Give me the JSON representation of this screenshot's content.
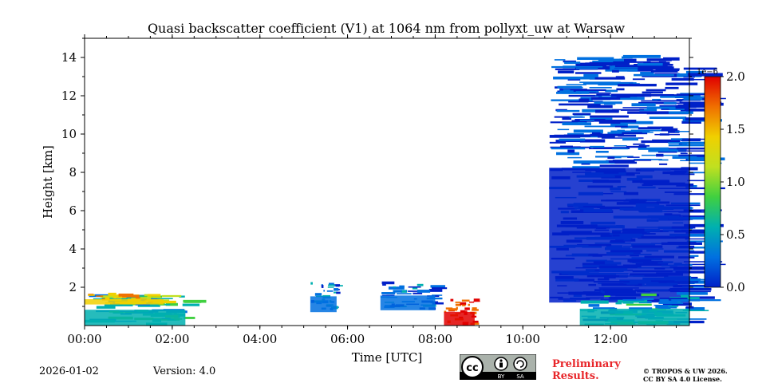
{
  "chart_data": {
    "type": "heatmap",
    "title": "Quasi backscatter coefficient (V1) at 1064 nm from pollyxt_uw at Warsaw",
    "xlabel": "Time [UTC]",
    "ylabel": "Height [km]",
    "xlim": [
      0,
      13.8
    ],
    "ylim": [
      0,
      15
    ],
    "xticks": [
      0,
      2,
      4,
      6,
      8,
      10,
      12
    ],
    "xtick_labels": [
      "00:00",
      "02:00",
      "04:00",
      "06:00",
      "08:00",
      "10:00",
      "12:00"
    ],
    "yticks": [
      2,
      4,
      6,
      8,
      10,
      12,
      14
    ],
    "ytick_labels": [
      "2",
      "4",
      "6",
      "8",
      "10",
      "12",
      "14"
    ],
    "colorbar": {
      "min": 0.0,
      "max": 2.0,
      "ticks": [
        0.0,
        0.5,
        1.0,
        1.5,
        2.0
      ],
      "tick_labels": [
        "0.0",
        "0.5",
        "1.0",
        "1.5",
        "2.0"
      ],
      "scale_label": "1e−6",
      "colormap": [
        "#0020c8",
        "#0070e0",
        "#00b0b0",
        "#40d040",
        "#c0e020",
        "#f0d000",
        "#f07000",
        "#e00000"
      ]
    },
    "regions": [
      {
        "name": "boundary-layer-night",
        "t": [
          0.0,
          2.3
        ],
        "h": [
          0.0,
          1.5
        ],
        "value": 0.6
      },
      {
        "name": "boundary-layer-top-night",
        "t": [
          0.0,
          1.8
        ],
        "h": [
          1.1,
          1.6
        ],
        "value": 1.4
      },
      {
        "name": "dense-cloud-0530",
        "t": [
          5.15,
          5.75
        ],
        "h": [
          0.7,
          2.2
        ],
        "value": 0.4
      },
      {
        "name": "cloud-layers-0700",
        "t": [
          6.75,
          8.0
        ],
        "h": [
          0.8,
          2.2
        ],
        "value": 0.3
      },
      {
        "name": "high-backscatter-0820",
        "t": [
          8.2,
          8.9
        ],
        "h": [
          0.0,
          1.3
        ],
        "value": 1.8
      },
      {
        "name": "dense-noise-afternoon",
        "t": [
          10.6,
          13.8
        ],
        "h": [
          1.2,
          14.0
        ],
        "value": 0.2
      },
      {
        "name": "boundary-layer-afternoon",
        "t": [
          11.3,
          13.8
        ],
        "h": [
          0.0,
          1.6
        ],
        "value": 0.5
      }
    ]
  },
  "footer": {
    "date": "2026-01-02",
    "version": "Version: 4.0",
    "cc_text": "cc",
    "cc_by": "BY",
    "cc_sa": "SA",
    "preliminary_line1": "Preliminary",
    "preliminary_line2": "Results.",
    "license_line1": "© TROPOS & UW 2026.",
    "license_line2": "CC BY SA 4.0 License."
  },
  "colors": {
    "preliminary": "#e8262a",
    "badge_bg": "#aab2ab"
  }
}
